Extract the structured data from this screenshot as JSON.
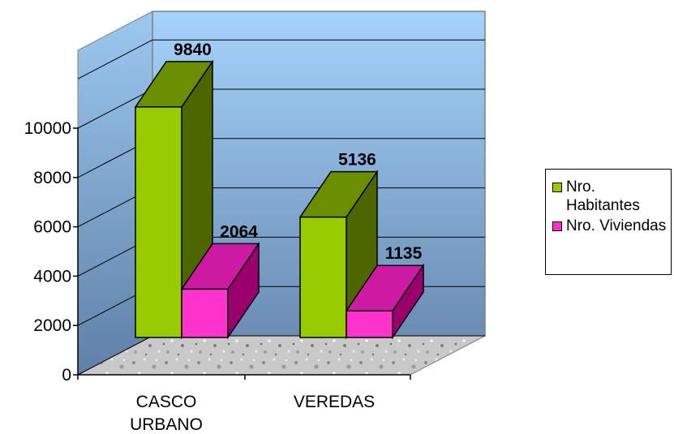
{
  "chart_data": {
    "type": "bar",
    "categories": [
      "CASCO URBANO",
      "VEREDAS"
    ],
    "series": [
      {
        "name": "Nro. Habitantes",
        "values": [
          9840,
          5136
        ],
        "color": "#99CC00"
      },
      {
        "name": "Nro. Viviendas",
        "values": [
          2064,
          1135
        ],
        "color": "#FF33CC"
      }
    ],
    "yticks": [
      0,
      2000,
      4000,
      6000,
      8000,
      10000
    ],
    "ylim": [
      0,
      10000
    ],
    "grid": true,
    "legend_position": "right",
    "three_d": true
  },
  "colors": {
    "wall_top": "#9ccdf5",
    "wall_bottom": "#6a8fb8",
    "floor": "#cfcfcf",
    "habitantes_front": "#99CC00",
    "habitantes_side": "#4d6600",
    "habitantes_top": "#6b8e00",
    "viviendas_front": "#FF33CC",
    "viviendas_side": "#99006b",
    "viviendas_top": "#cc1aa3"
  }
}
